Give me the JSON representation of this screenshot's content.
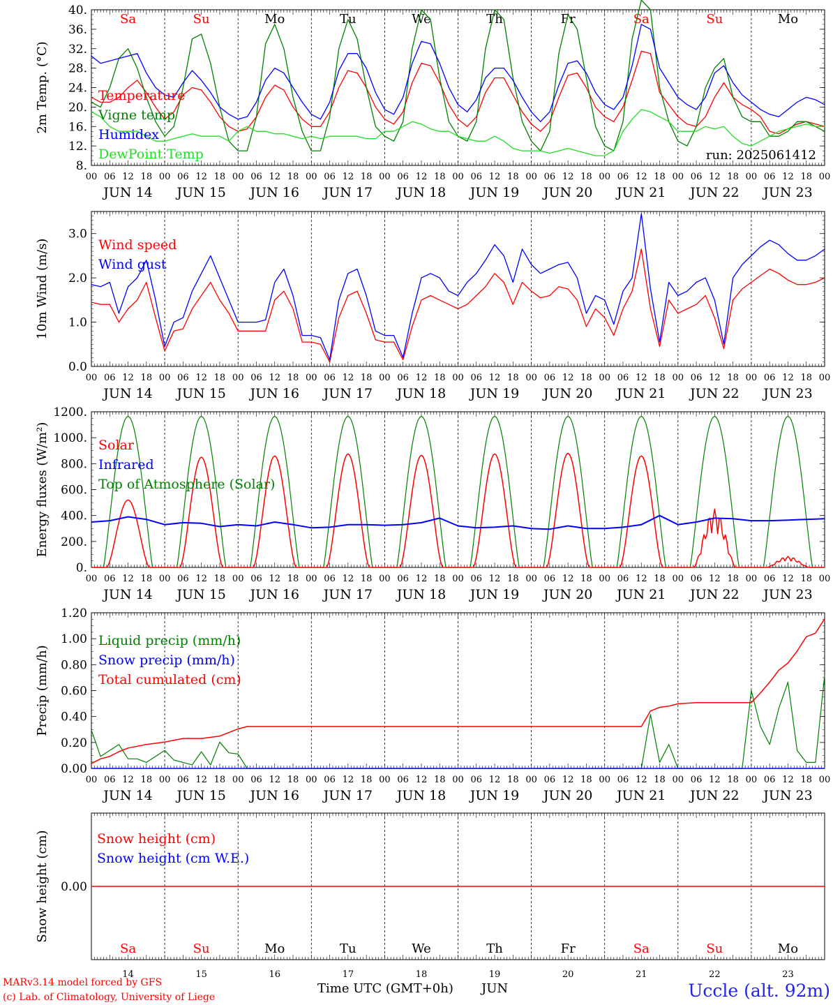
{
  "days": [
    "Sa",
    "Su",
    "Mo",
    "Tu",
    "We",
    "Th",
    "Fr",
    "Sa",
    "Su",
    "Mo"
  ],
  "weekend_days": [
    0,
    1,
    7,
    8
  ],
  "dates": [
    "JUN 14",
    "JUN 15",
    "JUN 16",
    "JUN 17",
    "JUN 18",
    "JUN 19",
    "JUN 20",
    "JUN 21",
    "JUN 22",
    "JUN 23"
  ],
  "day_numbers": [
    "14",
    "15",
    "16",
    "17",
    "18",
    "19",
    "20",
    "21",
    "22",
    "23"
  ],
  "hour_ticks": [
    "00",
    "06",
    "12",
    "18"
  ],
  "hour_ticks_last": "00",
  "run_label": "run: 2025061412",
  "xlabel": "Time UTC (GMT+0h)",
  "month": "JUN",
  "footer": {
    "credit1": "MARv3.14 model forced by GFS",
    "credit2": "(c) Lab. of Climatology, University of Liege",
    "station": "Uccle (alt. 92m)"
  },
  "colors": {
    "red": "#ff0000",
    "green": "#008000",
    "blue": "#0000ff",
    "lightgreen": "#22dd22",
    "black": "#000000",
    "station": "#2222ee"
  },
  "chart_data": [
    {
      "type": "line",
      "ylabel": "2m Temp. (°C)",
      "ylim": [
        8,
        40
      ],
      "yticks": [
        "8.",
        "12.",
        "16.",
        "20.",
        "24.",
        "28.",
        "32.",
        "36.",
        "40."
      ],
      "x_hours": [
        0,
        3,
        6,
        9,
        12,
        15,
        18,
        21,
        24,
        27,
        30,
        33,
        36,
        39,
        42,
        45,
        48,
        51,
        54,
        57,
        60,
        63,
        66,
        69,
        72,
        75,
        78,
        81,
        84,
        87,
        90,
        93,
        96,
        99,
        102,
        105,
        108,
        111,
        114,
        117,
        120,
        123,
        126,
        129,
        132,
        135,
        138,
        141,
        144,
        147,
        150,
        153,
        156,
        159,
        162,
        165,
        168,
        171,
        174,
        177,
        180,
        183,
        186,
        189,
        192,
        195,
        198,
        201,
        204,
        207,
        210,
        213,
        216,
        219,
        222,
        225,
        228,
        231,
        234,
        237,
        240
      ],
      "series": [
        {
          "name": "Temperature",
          "color": "red",
          "values": [
            22,
            21,
            21,
            22,
            24,
            25.5,
            23,
            20,
            17.5,
            19,
            22.5,
            24,
            23.5,
            21,
            18,
            16,
            15,
            15.5,
            18,
            22,
            24.5,
            23.5,
            20,
            17.5,
            16,
            16,
            19,
            24,
            27.5,
            27,
            24,
            20,
            17.5,
            16.5,
            19,
            25,
            29,
            28.5,
            25,
            20.5,
            17.5,
            16,
            18,
            23,
            26,
            26,
            22.5,
            19,
            16.5,
            15,
            17,
            22,
            26.5,
            27,
            24,
            20,
            18,
            17,
            20,
            25.5,
            31.5,
            31,
            23,
            20.5,
            18,
            16.5,
            16,
            18,
            22,
            25,
            22,
            20.5,
            19.5,
            18,
            15,
            14.5,
            15.5,
            16.5,
            17,
            16.5,
            16
          ]
        },
        {
          "name": "Vigne temp",
          "color": "green",
          "values": [
            21,
            20,
            24,
            30,
            32,
            28,
            22,
            17,
            14,
            16,
            24,
            34,
            35,
            29,
            20,
            13,
            11,
            11,
            18,
            33,
            37,
            32,
            22,
            15,
            11,
            11,
            18,
            32,
            38,
            34,
            24,
            16,
            14,
            13,
            17,
            32,
            40,
            38,
            26,
            17,
            14,
            13,
            17,
            32,
            40,
            38,
            26,
            17,
            13,
            11,
            15,
            31,
            39,
            36,
            26,
            16,
            12,
            11,
            17,
            34,
            42,
            40,
            24,
            17,
            13,
            12,
            16,
            24,
            28,
            30,
            22,
            18,
            17,
            17,
            14,
            14,
            15,
            17,
            17,
            16,
            15
          ]
        },
        {
          "name": "Humidex",
          "color": "blue",
          "values": [
            30.5,
            29,
            29.5,
            30,
            30.5,
            31,
            27,
            24,
            22.5,
            22,
            25,
            27.5,
            25.5,
            23,
            20,
            18.5,
            17.5,
            18,
            21,
            25.5,
            28,
            27,
            24,
            21,
            18.5,
            17.5,
            21,
            27.5,
            31,
            31,
            28,
            23,
            19.5,
            18.5,
            22,
            29,
            33.5,
            33,
            29,
            24,
            20.5,
            19,
            21.5,
            26,
            28,
            28,
            25.5,
            22,
            19,
            17,
            19,
            24.5,
            29,
            29.5,
            27,
            23,
            20.5,
            19.5,
            22,
            28.5,
            37,
            36,
            28,
            25,
            22,
            20.5,
            19.5,
            22,
            27,
            28.5,
            25,
            22.5,
            21,
            19.5,
            18.5,
            18,
            19.5,
            21,
            22,
            21.5,
            20.5
          ]
        },
        {
          "name": "DewPoint Temp",
          "color": "lightgreen",
          "values": [
            19,
            18,
            16,
            15,
            15,
            15,
            14,
            13,
            13,
            13.5,
            14,
            14.5,
            14,
            14,
            14,
            13,
            15,
            16,
            15,
            15,
            14.5,
            14.5,
            14,
            13.5,
            14,
            13.5,
            14,
            14,
            14,
            14,
            13.5,
            13.5,
            15,
            15,
            16,
            17,
            16.5,
            15.5,
            15,
            15,
            14,
            13.5,
            13,
            13,
            14,
            13,
            11.5,
            11,
            11,
            11,
            10.5,
            11,
            11.5,
            11,
            10.5,
            10,
            10,
            11,
            15,
            17.5,
            19.5,
            19,
            18,
            17,
            15,
            15,
            15,
            16,
            15.5,
            16,
            14,
            12.5,
            12,
            13,
            14,
            15,
            15.5,
            16,
            16.5,
            16,
            16
          ]
        }
      ],
      "legend": [
        "Temperature",
        "Vigne temp",
        "Humidex",
        "DewPoint Temp"
      ],
      "grid": false
    },
    {
      "type": "line",
      "ylabel": "10m Wind (m/s)",
      "ylim": [
        0,
        3.5
      ],
      "yticks": [
        "0.0",
        "1.0",
        "2.0",
        "3.0"
      ],
      "x_hours": [
        0,
        3,
        6,
        9,
        12,
        15,
        18,
        21,
        24,
        27,
        30,
        33,
        36,
        39,
        42,
        45,
        48,
        51,
        54,
        57,
        60,
        63,
        66,
        69,
        72,
        75,
        78,
        81,
        84,
        87,
        90,
        93,
        96,
        99,
        102,
        105,
        108,
        111,
        114,
        117,
        120,
        123,
        126,
        129,
        132,
        135,
        138,
        141,
        144,
        147,
        150,
        153,
        156,
        159,
        162,
        165,
        168,
        171,
        174,
        177,
        180,
        183,
        186,
        189,
        192,
        195,
        198,
        201,
        204,
        207,
        210,
        213,
        216,
        219,
        222,
        225,
        228,
        231,
        234,
        237,
        240
      ],
      "series": [
        {
          "name": "Wind speed",
          "color": "red",
          "values": [
            1.45,
            1.4,
            1.4,
            1.0,
            1.3,
            1.5,
            1.9,
            1.1,
            0.35,
            0.8,
            0.85,
            1.3,
            1.6,
            1.9,
            1.5,
            1.2,
            0.8,
            0.8,
            0.8,
            0.8,
            1.5,
            1.7,
            1.3,
            0.55,
            0.55,
            0.5,
            0.1,
            1.1,
            1.6,
            1.7,
            1.2,
            0.6,
            0.55,
            0.55,
            0.15,
            0.9,
            1.5,
            1.6,
            1.5,
            1.4,
            1.3,
            1.4,
            1.6,
            1.8,
            2.1,
            1.9,
            1.4,
            1.9,
            1.7,
            1.55,
            1.6,
            1.8,
            1.75,
            1.5,
            0.9,
            1.3,
            1.1,
            0.7,
            1.3,
            1.7,
            2.65,
            1.3,
            0.45,
            1.5,
            1.2,
            1.3,
            1.4,
            1.6,
            1.1,
            0.4,
            1.5,
            1.75,
            1.9,
            2.05,
            2.2,
            2.1,
            1.95,
            1.85,
            1.85,
            1.9,
            2.0
          ]
        },
        {
          "name": "Wind gust",
          "color": "blue",
          "values": [
            1.85,
            1.8,
            1.9,
            1.2,
            1.8,
            2.0,
            2.4,
            1.5,
            0.45,
            1.0,
            1.1,
            1.7,
            2.1,
            2.5,
            2.0,
            1.5,
            1.0,
            1.0,
            1.0,
            1.05,
            1.9,
            2.2,
            1.6,
            0.7,
            0.7,
            0.65,
            0.15,
            1.5,
            2.1,
            2.2,
            1.6,
            0.8,
            0.7,
            0.7,
            0.2,
            1.2,
            2.0,
            2.1,
            2.0,
            1.7,
            1.6,
            1.9,
            2.1,
            2.4,
            2.75,
            2.5,
            1.9,
            2.65,
            2.3,
            2.1,
            2.2,
            2.3,
            2.35,
            2.0,
            1.2,
            1.6,
            1.5,
            0.95,
            1.7,
            2.0,
            3.45,
            1.75,
            0.55,
            1.9,
            1.6,
            1.7,
            1.9,
            2.0,
            1.5,
            0.5,
            2.0,
            2.3,
            2.5,
            2.7,
            2.85,
            2.75,
            2.55,
            2.4,
            2.4,
            2.5,
            2.65
          ]
        }
      ],
      "legend": [
        "Wind speed",
        "Wind gust"
      ],
      "grid": false
    },
    {
      "type": "line",
      "ylabel": "Energy fluxes (W/m²)",
      "ylim": [
        0,
        1200
      ],
      "yticks": [
        "0.",
        "200.",
        "400.",
        "600.",
        "800.",
        "1000.",
        "1200."
      ],
      "series": [
        {
          "name": "Solar",
          "color": "red",
          "peaks": [
            520,
            850,
            860,
            875,
            865,
            875,
            880,
            860,
            450,
            85
          ],
          "cloudy": [
            0,
            0,
            0,
            0,
            0,
            0,
            0,
            0,
            1,
            1
          ]
        },
        {
          "name": "Infrared",
          "color": "blue",
          "x_hours": [
            0,
            6,
            12,
            18,
            24,
            30,
            36,
            42,
            48,
            54,
            60,
            66,
            72,
            78,
            84,
            90,
            96,
            102,
            108,
            114,
            120,
            126,
            132,
            138,
            144,
            150,
            156,
            162,
            168,
            174,
            180,
            186,
            192,
            198,
            204,
            210,
            216,
            222,
            228,
            234,
            240
          ],
          "values": [
            350,
            360,
            390,
            370,
            330,
            345,
            340,
            315,
            330,
            320,
            350,
            330,
            305,
            310,
            330,
            330,
            325,
            330,
            345,
            380,
            320,
            305,
            310,
            320,
            300,
            295,
            320,
            300,
            300,
            310,
            330,
            400,
            330,
            350,
            380,
            375,
            360,
            360,
            365,
            370,
            375
          ]
        },
        {
          "name": "Top of Atmosphere (Solar)",
          "color": "green",
          "peak": 1165
        }
      ],
      "legend": [
        "Solar",
        "Infrared",
        "Top of Atmosphere (Solar)"
      ],
      "grid": false
    },
    {
      "type": "line",
      "ylabel": "Precip (mm/h)",
      "ylim": [
        0,
        1.3
      ],
      "yticks": [
        "0.00",
        "0.20",
        "0.40",
        "0.60",
        "0.80",
        "1.00",
        "1.20"
      ],
      "series": [
        {
          "name": "Liquid precip (mm/h)",
          "color": "green",
          "x_hours": [
            0,
            3,
            6,
            9,
            12,
            15,
            18,
            21,
            24,
            27,
            30,
            33,
            36,
            39,
            42,
            45,
            48,
            51,
            54,
            180,
            183,
            186,
            189,
            192,
            195,
            198,
            213,
            216,
            219,
            222,
            225,
            228,
            231,
            234,
            237,
            240
          ],
          "values": [
            0.32,
            0.1,
            0.15,
            0.2,
            0.08,
            0.08,
            0.05,
            0.1,
            0.15,
            0.07,
            0.05,
            0.03,
            0.14,
            0.03,
            0.22,
            0.13,
            0.12,
            0.0,
            0.0,
            0.0,
            0.45,
            0.05,
            0.2,
            0.0,
            0.0,
            0.0,
            0.0,
            0.65,
            0.35,
            0.2,
            0.5,
            0.72,
            0.15,
            0.05,
            0.05,
            0.78
          ]
        },
        {
          "name": "Snow precip (mm/h)",
          "color": "blue",
          "values": [
            0
          ]
        },
        {
          "name": "Total cumulated (cm)",
          "color": "red",
          "x_hours": [
            0,
            3,
            6,
            9,
            12,
            18,
            24,
            30,
            36,
            42,
            48,
            51,
            60,
            120,
            180,
            183,
            186,
            189,
            192,
            198,
            204,
            216,
            219,
            222,
            225,
            228,
            231,
            234,
            237,
            240
          ],
          "values": [
            0.04,
            0.08,
            0.1,
            0.14,
            0.17,
            0.2,
            0.22,
            0.25,
            0.25,
            0.27,
            0.33,
            0.35,
            0.35,
            0.35,
            0.35,
            0.48,
            0.51,
            0.52,
            0.54,
            0.55,
            0.55,
            0.55,
            0.63,
            0.72,
            0.82,
            0.88,
            0.98,
            1.1,
            1.13,
            1.25
          ]
        }
      ],
      "legend": [
        "Liquid precip (mm/h)",
        "Snow precip (mm/h)",
        "Total cumulated (cm)"
      ],
      "grid": false
    },
    {
      "type": "line",
      "ylabel": "Snow height (cm)",
      "ylim": [
        -1,
        1
      ],
      "yticks": [
        "0.00"
      ],
      "series": [
        {
          "name": "Snow height (cm)",
          "color": "red",
          "values": [
            0
          ]
        },
        {
          "name": "Snow height (cm W.E.)",
          "color": "blue",
          "values": [
            0
          ]
        }
      ],
      "legend": [
        "Snow height (cm)",
        "Snow height (cm W.E.)"
      ],
      "grid": false
    }
  ]
}
